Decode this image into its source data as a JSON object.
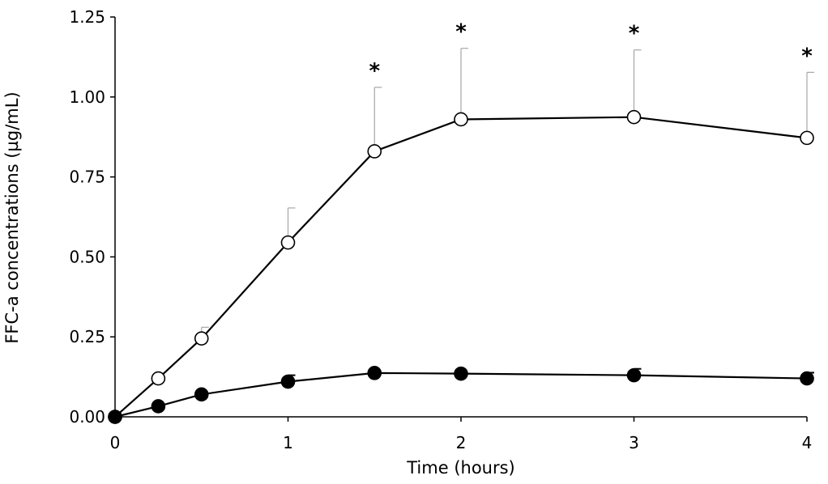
{
  "chart_data": {
    "type": "line",
    "title": "",
    "xlabel": "Time (hours)",
    "ylabel": "FFC-a concentrations (µg/mL)",
    "xlim": [
      0,
      4
    ],
    "ylim": [
      0,
      1.25
    ],
    "x_ticks": [
      0,
      1,
      2,
      3,
      4
    ],
    "y_ticks": [
      "0.00",
      "0.25",
      "0.50",
      "0.75",
      "1.00",
      "1.25"
    ],
    "grid": false,
    "legend": "none",
    "series": [
      {
        "marker": "open-circle",
        "x": [
          0,
          0.25,
          0.5,
          1,
          1.5,
          2,
          3,
          4
        ],
        "y": [
          0.0,
          0.12,
          0.245,
          0.545,
          0.83,
          0.93,
          0.937,
          0.872
        ],
        "error_upper": [
          0.0,
          0.0,
          0.035,
          0.108,
          0.2,
          0.222,
          0.21,
          0.205
        ]
      },
      {
        "marker": "filled-circle",
        "x": [
          0,
          0.25,
          0.5,
          1,
          1.5,
          2,
          3,
          4
        ],
        "y": [
          0.0,
          0.033,
          0.07,
          0.11,
          0.137,
          0.135,
          0.13,
          0.12
        ],
        "error_upper": [
          0.0,
          0.0,
          0.0,
          0.02,
          0.0,
          0.0,
          0.02,
          0.018
        ]
      }
    ],
    "annotations": [
      {
        "x": 1.5,
        "text": "*"
      },
      {
        "x": 2,
        "text": "*"
      },
      {
        "x": 3,
        "text": "*"
      },
      {
        "x": 4,
        "text": "*"
      }
    ],
    "colors": {
      "line": "#000000",
      "error_bar": "#a6a6a6",
      "axis": "#000000"
    }
  }
}
